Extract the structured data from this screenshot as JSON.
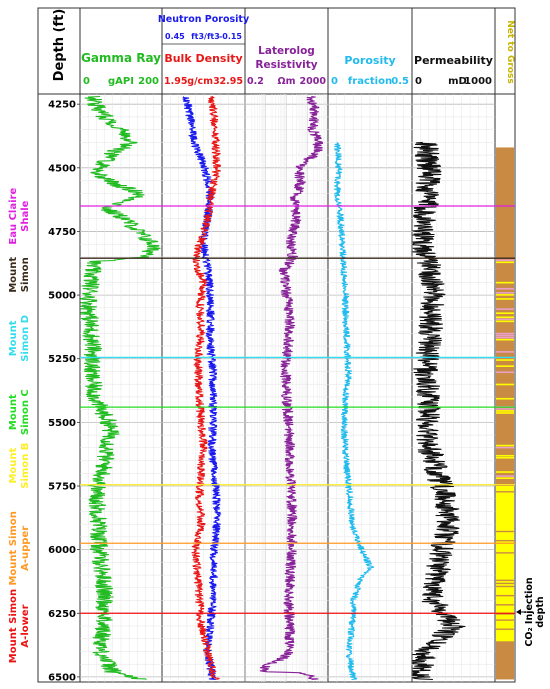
{
  "chart_data": {
    "type": "line",
    "depth_axis": {
      "label": "Depth (ft)",
      "ticks": [
        4250,
        4500,
        4750,
        5000,
        5250,
        5500,
        5750,
        6000,
        6250,
        6500
      ],
      "range": [
        4210,
        6520
      ]
    },
    "tracks": [
      {
        "id": "gamma",
        "title": "Gamma Ray",
        "curves": [
          {
            "name": "Gamma Ray",
            "unit": "gAPI",
            "min": "0",
            "max": "200",
            "color": "#22bb22",
            "range": [
              0,
              200
            ],
            "profile": [
              [
                4220,
                30
              ],
              [
                4260,
                40
              ],
              [
                4300,
                60
              ],
              [
                4350,
                100
              ],
              [
                4400,
                130
              ],
              [
                4440,
                80
              ],
              [
                4480,
                60
              ],
              [
                4520,
                40
              ],
              [
                4560,
                80
              ],
              [
                4600,
                150
              ],
              [
                4630,
                120
              ],
              [
                4660,
                60
              ],
              [
                4700,
                110
              ],
              [
                4760,
                150
              ],
              [
                4800,
                180
              ],
              [
                4850,
                170
              ],
              [
                4870,
                30
              ],
              [
                4950,
                25
              ],
              [
                5050,
                20
              ],
              [
                5150,
                25
              ],
              [
                5200,
                30
              ],
              [
                5250,
                30
              ],
              [
                5300,
                25
              ],
              [
                5400,
                35
              ],
              [
                5450,
                50
              ],
              [
                5500,
                70
              ],
              [
                5550,
                75
              ],
              [
                5600,
                65
              ],
              [
                5650,
                60
              ],
              [
                5700,
                55
              ],
              [
                5750,
                40
              ],
              [
                5800,
                40
              ],
              [
                5900,
                45
              ],
              [
                6000,
                45
              ],
              [
                6100,
                55
              ],
              [
                6200,
                60
              ],
              [
                6300,
                55
              ],
              [
                6400,
                50
              ],
              [
                6480,
                80
              ],
              [
                6510,
                150
              ]
            ],
            "noise": 22
          }
        ]
      },
      {
        "id": "density",
        "title": "Bulk Density",
        "curves": [
          {
            "name": "Neutron Porosity",
            "unit": "ft3/ft3",
            "min": "0.45",
            "max": "-0.15",
            "color": "#1a1aee",
            "range": [
              0.45,
              -0.15
            ],
            "profile": [
              [
                4220,
                0.28
              ],
              [
                4300,
                0.25
              ],
              [
                4400,
                0.22
              ],
              [
                4500,
                0.14
              ],
              [
                4600,
                0.1
              ],
              [
                4700,
                0.12
              ],
              [
                4800,
                0.15
              ],
              [
                4900,
                0.12
              ],
              [
                5000,
                0.1
              ],
              [
                5200,
                0.1
              ],
              [
                5300,
                0.08
              ],
              [
                5500,
                0.08
              ],
              [
                5600,
                0.09
              ],
              [
                5750,
                0.06
              ],
              [
                5900,
                0.05
              ],
              [
                6000,
                0.07
              ],
              [
                6200,
                0.08
              ],
              [
                6400,
                0.12
              ],
              [
                6510,
                0.08
              ]
            ],
            "noise": 0.03
          },
          {
            "name": "Bulk Density",
            "unit": "g/cm3",
            "min": "1.95",
            "max": "2.95",
            "color": "#e81818",
            "range": [
              1.95,
              2.95
            ],
            "profile": [
              [
                4220,
                2.55
              ],
              [
                4300,
                2.58
              ],
              [
                4400,
                2.6
              ],
              [
                4500,
                2.62
              ],
              [
                4600,
                2.55
              ],
              [
                4700,
                2.5
              ],
              [
                4800,
                2.4
              ],
              [
                4870,
                2.35
              ],
              [
                4950,
                2.45
              ],
              [
                5050,
                2.4
              ],
              [
                5150,
                2.42
              ],
              [
                5250,
                2.38
              ],
              [
                5400,
                2.4
              ],
              [
                5500,
                2.42
              ],
              [
                5600,
                2.45
              ],
              [
                5700,
                2.42
              ],
              [
                5800,
                2.4
              ],
              [
                5900,
                2.42
              ],
              [
                6000,
                2.35
              ],
              [
                6100,
                2.38
              ],
              [
                6200,
                2.4
              ],
              [
                6300,
                2.42
              ],
              [
                6400,
                2.5
              ],
              [
                6510,
                2.6
              ]
            ],
            "noise": 0.05
          }
        ]
      },
      {
        "id": "resistivity",
        "title": "Laterolog Resistivity",
        "curves": [
          {
            "name": "Laterolog Resistivity",
            "unit": "Ωm",
            "min": "0.2",
            "max": "2000",
            "color": "#882299",
            "log": true,
            "range": [
              0.2,
              2000
            ],
            "profile": [
              [
                4220,
                300
              ],
              [
                4280,
                500
              ],
              [
                4350,
                400
              ],
              [
                4420,
                800
              ],
              [
                4470,
                200
              ],
              [
                4500,
                80
              ],
              [
                4560,
                100
              ],
              [
                4620,
                50
              ],
              [
                4700,
                60
              ],
              [
                4780,
                30
              ],
              [
                4850,
                40
              ],
              [
                4900,
                15
              ],
              [
                5000,
                20
              ],
              [
                5100,
                30
              ],
              [
                5200,
                25
              ],
              [
                5250,
                20
              ],
              [
                5300,
                18
              ],
              [
                5400,
                20
              ],
              [
                5500,
                25
              ],
              [
                5600,
                30
              ],
              [
                5700,
                30
              ],
              [
                5800,
                35
              ],
              [
                5900,
                40
              ],
              [
                6000,
                35
              ],
              [
                6100,
                30
              ],
              [
                6200,
                25
              ],
              [
                6300,
                30
              ],
              [
                6400,
                25
              ],
              [
                6450,
                2
              ],
              [
                6480,
                1.5
              ],
              [
                6510,
                500
              ]
            ],
            "noise": 0.25
          }
        ]
      },
      {
        "id": "porosity",
        "title": "Porosity",
        "curves": [
          {
            "name": "Porosity",
            "unit": "fraction",
            "min": "0",
            "max": "0.5",
            "color": "#22bbee",
            "range": [
              0,
              0.5
            ],
            "profile": [
              [
                4400,
                0.05
              ],
              [
                4500,
                0.06
              ],
              [
                4600,
                0.05
              ],
              [
                4700,
                0.07
              ],
              [
                4800,
                0.08
              ],
              [
                4900,
                0.09
              ],
              [
                5000,
                0.1
              ],
              [
                5100,
                0.1
              ],
              [
                5200,
                0.11
              ],
              [
                5300,
                0.12
              ],
              [
                5400,
                0.1
              ],
              [
                5500,
                0.09
              ],
              [
                5600,
                0.1
              ],
              [
                5700,
                0.11
              ],
              [
                5800,
                0.13
              ],
              [
                5900,
                0.14
              ],
              [
                6000,
                0.2
              ],
              [
                6080,
                0.26
              ],
              [
                6100,
                0.2
              ],
              [
                6200,
                0.15
              ],
              [
                6300,
                0.14
              ],
              [
                6400,
                0.12
              ],
              [
                6510,
                0.15
              ]
            ],
            "noise": 0.02
          }
        ]
      },
      {
        "id": "permeability",
        "title": "Permeability",
        "curves": [
          {
            "name": "Permeability",
            "unit": "mD",
            "min": "0",
            "max": "1000",
            "color": "#111111",
            "range": [
              0,
              1000
            ],
            "profile": [
              [
                4400,
                150
              ],
              [
                4500,
                200
              ],
              [
                4600,
                180
              ],
              [
                4700,
                150
              ],
              [
                4800,
                100
              ],
              [
                4870,
                200
              ],
              [
                5000,
                250
              ],
              [
                5200,
                200
              ],
              [
                5300,
                150
              ],
              [
                5400,
                200
              ],
              [
                5500,
                180
              ],
              [
                5600,
                200
              ],
              [
                5700,
                300
              ],
              [
                5800,
                400
              ],
              [
                5900,
                450
              ],
              [
                6000,
                350
              ],
              [
                6100,
                300
              ],
              [
                6200,
                250
              ],
              [
                6250,
                400
              ],
              [
                6300,
                500
              ],
              [
                6400,
                150
              ],
              [
                6510,
                100
              ]
            ],
            "noise": 150
          }
        ]
      }
    ],
    "net_to_gross": {
      "title": "Net to Gross",
      "colors": {
        "brown": "#c98a44",
        "pink": "#e8a0c8",
        "yellow": "#ffff00"
      }
    },
    "formation_tops": [
      {
        "name": "Eau Claire Shale",
        "depth": 4650,
        "color": "#e020e0"
      },
      {
        "name": "Mount Simon",
        "depth": 4855,
        "color": "#3a2a1a"
      },
      {
        "name": "Mount Simon D",
        "depth": 5245,
        "color": "#33ddee"
      },
      {
        "name": "Mount Simon C",
        "depth": 5440,
        "color": "#22dd22"
      },
      {
        "name": "Mount Simon B",
        "depth": 5745,
        "color": "#ffee22"
      },
      {
        "name": "Mount Simon A-upper",
        "depth": 5975,
        "color": "#ff9922"
      },
      {
        "name": "Mount Simon A-lower",
        "depth": 6250,
        "color": "#ee1111"
      }
    ],
    "annotations": [
      {
        "text": "CO₂ Injection depth",
        "depth": 6245
      }
    ]
  }
}
